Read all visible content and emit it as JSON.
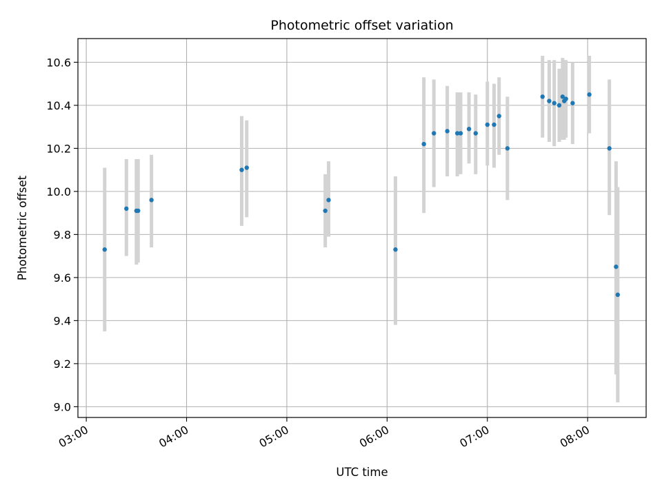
{
  "chart_data": {
    "type": "scatter",
    "title": "Photometric offset variation",
    "xlabel": "UTC time",
    "ylabel": "Photometric offset",
    "xlim": [
      "02:55",
      "08:35"
    ],
    "ylim": [
      8.95,
      10.71
    ],
    "x_ticks": [
      "03:00",
      "04:00",
      "05:00",
      "06:00",
      "07:00",
      "08:00"
    ],
    "y_ticks": [
      "9.0",
      "9.2",
      "9.4",
      "9.6",
      "9.8",
      "10.0",
      "10.2",
      "10.4",
      "10.6"
    ],
    "grid": true,
    "colors": {
      "point": "#1f77b4",
      "errorbar": "#d3d3d3",
      "grid": "#b0b0b0"
    },
    "series": [
      {
        "points": [
          {
            "x": "03:11",
            "y": 9.73,
            "low": 9.35,
            "high": 10.11
          },
          {
            "x": "03:24",
            "y": 9.92,
            "low": 9.7,
            "high": 10.15
          },
          {
            "x": "03:30",
            "y": 9.91,
            "low": 9.66,
            "high": 10.15
          },
          {
            "x": "03:31",
            "y": 9.91,
            "low": 9.67,
            "high": 10.15
          },
          {
            "x": "03:39",
            "y": 9.96,
            "low": 9.74,
            "high": 10.17
          },
          {
            "x": "04:33",
            "y": 10.1,
            "low": 9.84,
            "high": 10.35
          },
          {
            "x": "04:36",
            "y": 10.11,
            "low": 9.88,
            "high": 10.33
          },
          {
            "x": "05:23",
            "y": 9.91,
            "low": 9.74,
            "high": 10.08
          },
          {
            "x": "05:25",
            "y": 9.96,
            "low": 9.79,
            "high": 10.14
          },
          {
            "x": "06:05",
            "y": 9.73,
            "low": 9.38,
            "high": 10.07
          },
          {
            "x": "06:22",
            "y": 10.22,
            "low": 9.9,
            "high": 10.53
          },
          {
            "x": "06:28",
            "y": 10.27,
            "low": 10.02,
            "high": 10.52
          },
          {
            "x": "06:36",
            "y": 10.28,
            "low": 10.07,
            "high": 10.49
          },
          {
            "x": "06:42",
            "y": 10.27,
            "low": 10.07,
            "high": 10.46
          },
          {
            "x": "06:44",
            "y": 10.27,
            "low": 10.08,
            "high": 10.46
          },
          {
            "x": "06:49",
            "y": 10.29,
            "low": 10.13,
            "high": 10.46
          },
          {
            "x": "06:53",
            "y": 10.27,
            "low": 10.08,
            "high": 10.45
          },
          {
            "x": "07:00",
            "y": 10.31,
            "low": 10.12,
            "high": 10.51
          },
          {
            "x": "07:04",
            "y": 10.31,
            "low": 10.11,
            "high": 10.5
          },
          {
            "x": "07:07",
            "y": 10.35,
            "low": 10.17,
            "high": 10.53
          },
          {
            "x": "07:12",
            "y": 10.2,
            "low": 9.96,
            "high": 10.44
          },
          {
            "x": "07:33",
            "y": 10.44,
            "low": 10.25,
            "high": 10.63
          },
          {
            "x": "07:37",
            "y": 10.42,
            "low": 10.23,
            "high": 10.61
          },
          {
            "x": "07:40",
            "y": 10.41,
            "low": 10.21,
            "high": 10.61
          },
          {
            "x": "07:43",
            "y": 10.4,
            "low": 10.23,
            "high": 10.57
          },
          {
            "x": "07:45",
            "y": 10.44,
            "low": 10.24,
            "high": 10.62
          },
          {
            "x": "07:46",
            "y": 10.42,
            "low": 10.24,
            "high": 10.61
          },
          {
            "x": "07:47",
            "y": 10.43,
            "low": 10.25,
            "high": 10.61
          },
          {
            "x": "07:51",
            "y": 10.41,
            "low": 10.22,
            "high": 10.6
          },
          {
            "x": "08:01",
            "y": 10.45,
            "low": 10.27,
            "high": 10.63
          },
          {
            "x": "08:13",
            "y": 10.2,
            "low": 9.89,
            "high": 10.52
          },
          {
            "x": "08:17",
            "y": 9.65,
            "low": 9.15,
            "high": 10.14
          },
          {
            "x": "08:18",
            "y": 9.52,
            "low": 9.02,
            "high": 10.02
          }
        ]
      }
    ]
  }
}
